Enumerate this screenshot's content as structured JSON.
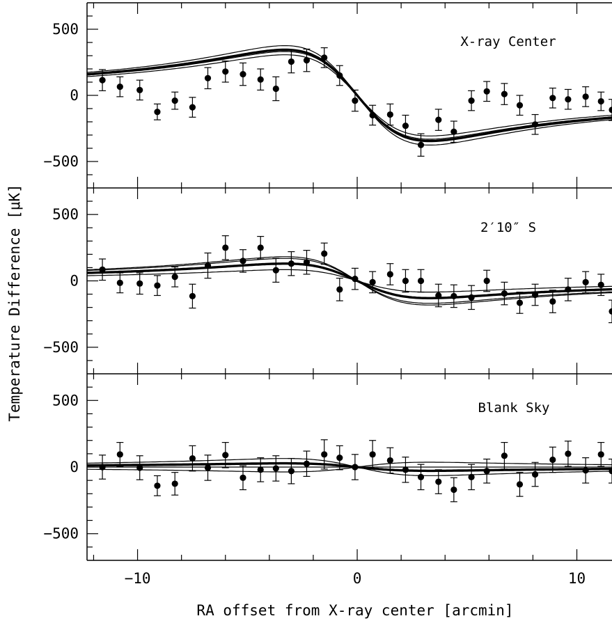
{
  "chart_data": {
    "type": "scatter",
    "xlabel": "RA offset from X-ray center [arcmin]",
    "ylabel": "Temperature Difference [μK]",
    "xlim": [
      -12.3,
      11.6
    ],
    "xticks": [
      -10,
      0,
      10
    ],
    "yticks": [
      -500,
      0,
      500
    ],
    "grid": false,
    "panels": [
      {
        "label": "X-ray Center",
        "ylim": [
          -700,
          700
        ],
        "amplitude": 345,
        "model_scales": [
          0.89,
          0.96,
          1.09
        ],
        "points": [
          {
            "x": -11.6,
            "y": 115,
            "err": 80
          },
          {
            "x": -10.8,
            "y": 65,
            "err": 75
          },
          {
            "x": -9.9,
            "y": 40,
            "err": 75
          },
          {
            "x": -9.1,
            "y": -125,
            "err": 60
          },
          {
            "x": -8.3,
            "y": -40,
            "err": 65
          },
          {
            "x": -7.5,
            "y": -90,
            "err": 75
          },
          {
            "x": -6.8,
            "y": 130,
            "err": 80
          },
          {
            "x": -6.0,
            "y": 180,
            "err": 80
          },
          {
            "x": -5.2,
            "y": 160,
            "err": 85
          },
          {
            "x": -4.4,
            "y": 120,
            "err": 80
          },
          {
            "x": -3.7,
            "y": 50,
            "err": 90
          },
          {
            "x": -3.0,
            "y": 255,
            "err": 85
          },
          {
            "x": -2.3,
            "y": 265,
            "err": 85
          },
          {
            "x": -1.5,
            "y": 285,
            "err": 75
          },
          {
            "x": -0.8,
            "y": 150,
            "err": 75
          },
          {
            "x": -0.1,
            "y": -40,
            "err": 80
          },
          {
            "x": 0.7,
            "y": -150,
            "err": 75
          },
          {
            "x": 1.5,
            "y": -145,
            "err": 80
          },
          {
            "x": 2.2,
            "y": -230,
            "err": 80
          },
          {
            "x": 2.9,
            "y": -375,
            "err": 85
          },
          {
            "x": 3.7,
            "y": -185,
            "err": 80
          },
          {
            "x": 4.4,
            "y": -275,
            "err": 80
          },
          {
            "x": 5.2,
            "y": -40,
            "err": 75
          },
          {
            "x": 5.9,
            "y": 30,
            "err": 75
          },
          {
            "x": 6.7,
            "y": 10,
            "err": 80
          },
          {
            "x": 7.4,
            "y": -75,
            "err": 75
          },
          {
            "x": 8.1,
            "y": -220,
            "err": 75
          },
          {
            "x": 8.9,
            "y": -20,
            "err": 75
          },
          {
            "x": 9.6,
            "y": -30,
            "err": 75
          },
          {
            "x": 10.4,
            "y": -10,
            "err": 75
          },
          {
            "x": 11.1,
            "y": -45,
            "err": 70
          },
          {
            "x": 11.6,
            "y": -110,
            "err": 80
          }
        ]
      },
      {
        "label": "2′10″ S",
        "ylim": [
          -700,
          700
        ],
        "amplitude": 130,
        "model_scales": [
          0.65,
          1.3,
          1.4
        ],
        "points": [
          {
            "x": -11.6,
            "y": 85,
            "err": 80
          },
          {
            "x": -10.8,
            "y": -15,
            "err": 75
          },
          {
            "x": -9.9,
            "y": -20,
            "err": 80
          },
          {
            "x": -9.1,
            "y": -35,
            "err": 75
          },
          {
            "x": -8.3,
            "y": 30,
            "err": 75
          },
          {
            "x": -7.5,
            "y": -115,
            "err": 90
          },
          {
            "x": -6.8,
            "y": 115,
            "err": 95
          },
          {
            "x": -6.0,
            "y": 250,
            "err": 90
          },
          {
            "x": -5.2,
            "y": 150,
            "err": 85
          },
          {
            "x": -4.4,
            "y": 250,
            "err": 85
          },
          {
            "x": -3.7,
            "y": 80,
            "err": 90
          },
          {
            "x": -3.0,
            "y": 130,
            "err": 90
          },
          {
            "x": -2.3,
            "y": 140,
            "err": 90
          },
          {
            "x": -1.5,
            "y": 205,
            "err": 80
          },
          {
            "x": -0.8,
            "y": -65,
            "err": 85
          },
          {
            "x": -0.1,
            "y": 15,
            "err": 80
          },
          {
            "x": 0.7,
            "y": -10,
            "err": 80
          },
          {
            "x": 1.5,
            "y": 50,
            "err": 80
          },
          {
            "x": 2.2,
            "y": 0,
            "err": 85
          },
          {
            "x": 2.9,
            "y": 0,
            "err": 85
          },
          {
            "x": 3.7,
            "y": -110,
            "err": 85
          },
          {
            "x": 4.4,
            "y": -115,
            "err": 85
          },
          {
            "x": 5.2,
            "y": -125,
            "err": 90
          },
          {
            "x": 5.9,
            "y": 0,
            "err": 80
          },
          {
            "x": 6.7,
            "y": -95,
            "err": 85
          },
          {
            "x": 7.4,
            "y": -165,
            "err": 80
          },
          {
            "x": 8.1,
            "y": -105,
            "err": 80
          },
          {
            "x": 8.9,
            "y": -155,
            "err": 85
          },
          {
            "x": 9.6,
            "y": -65,
            "err": 85
          },
          {
            "x": 10.4,
            "y": -10,
            "err": 80
          },
          {
            "x": 11.1,
            "y": -30,
            "err": 80
          },
          {
            "x": 11.6,
            "y": -230,
            "err": 85
          }
        ]
      },
      {
        "label": "Blank Sky",
        "ylim": [
          -700,
          700
        ],
        "amplitude": 28,
        "model_scales": [
          0,
          2.3,
          -1.3
        ],
        "points": [
          {
            "x": -11.6,
            "y": 0,
            "err": 90
          },
          {
            "x": -10.8,
            "y": 95,
            "err": 90
          },
          {
            "x": -9.9,
            "y": -5,
            "err": 90
          },
          {
            "x": -9.1,
            "y": -140,
            "err": 75
          },
          {
            "x": -8.3,
            "y": -125,
            "err": 85
          },
          {
            "x": -7.5,
            "y": 65,
            "err": 95
          },
          {
            "x": -6.8,
            "y": -5,
            "err": 95
          },
          {
            "x": -6.0,
            "y": 90,
            "err": 95
          },
          {
            "x": -5.2,
            "y": -80,
            "err": 90
          },
          {
            "x": -4.4,
            "y": -20,
            "err": 90
          },
          {
            "x": -3.7,
            "y": -10,
            "err": 95
          },
          {
            "x": -3.0,
            "y": -30,
            "err": 95
          },
          {
            "x": -2.3,
            "y": 25,
            "err": 95
          },
          {
            "x": -1.5,
            "y": 95,
            "err": 110
          },
          {
            "x": -0.8,
            "y": 70,
            "err": 90
          },
          {
            "x": -0.1,
            "y": 0,
            "err": 95
          },
          {
            "x": 0.7,
            "y": 95,
            "err": 105
          },
          {
            "x": 1.5,
            "y": 50,
            "err": 95
          },
          {
            "x": 2.2,
            "y": -20,
            "err": 95
          },
          {
            "x": 2.9,
            "y": -75,
            "err": 95
          },
          {
            "x": 3.7,
            "y": -110,
            "err": 90
          },
          {
            "x": 4.4,
            "y": -170,
            "err": 90
          },
          {
            "x": 5.2,
            "y": -75,
            "err": 95
          },
          {
            "x": 5.9,
            "y": -30,
            "err": 90
          },
          {
            "x": 6.7,
            "y": 85,
            "err": 100
          },
          {
            "x": 7.4,
            "y": -130,
            "err": 90
          },
          {
            "x": 8.1,
            "y": -55,
            "err": 90
          },
          {
            "x": 8.9,
            "y": 55,
            "err": 95
          },
          {
            "x": 9.6,
            "y": 100,
            "err": 95
          },
          {
            "x": 10.4,
            "y": -25,
            "err": 95
          },
          {
            "x": 11.1,
            "y": 95,
            "err": 90
          },
          {
            "x": 11.6,
            "y": -30,
            "err": 90
          }
        ]
      }
    ]
  }
}
